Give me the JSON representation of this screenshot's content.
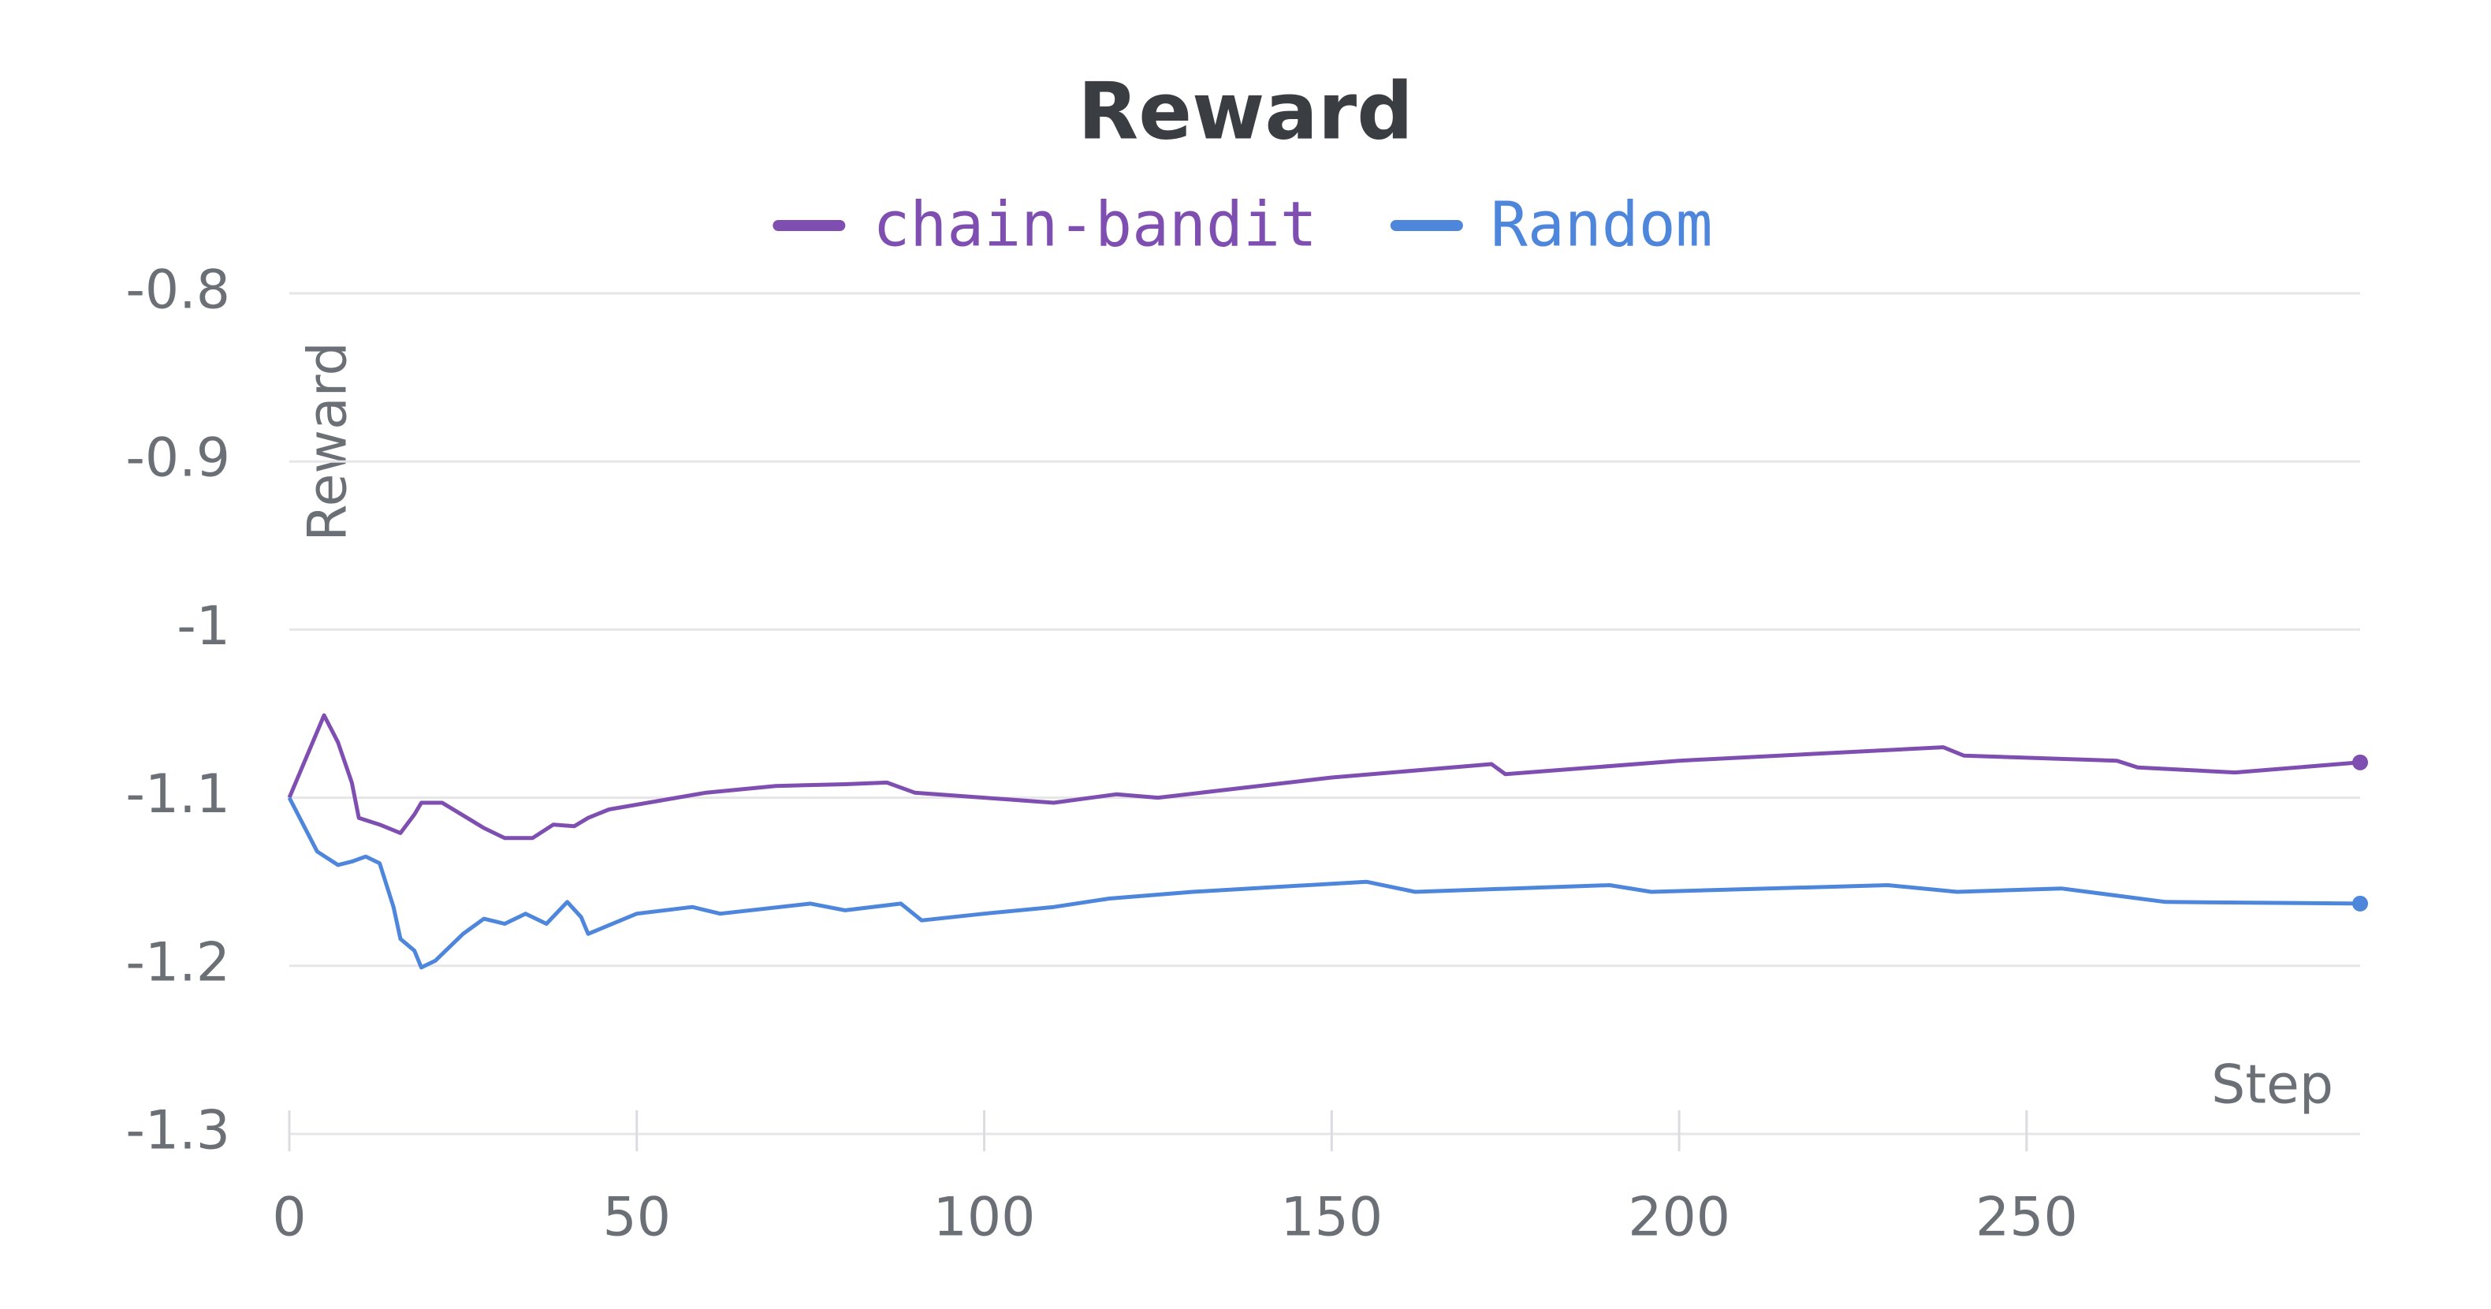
{
  "chart_data": {
    "type": "line",
    "title": "Reward",
    "x_label": "Step",
    "y_label": "Reward",
    "xlim": [
      0,
      298
    ],
    "xticks": [
      0,
      50,
      100,
      150,
      200,
      250
    ],
    "ylim": [
      -1.3,
      -0.8
    ],
    "yticks": [
      -0.8,
      -0.9,
      -1,
      -1.1,
      -1.2,
      -1.3
    ],
    "grid": true,
    "legend": "top",
    "series": [
      {
        "name": "chain-bandit",
        "color": "#7e4fb0",
        "x": [
          0,
          5,
          7,
          9,
          10,
          13,
          16,
          18,
          19,
          22,
          26,
          28,
          31,
          35,
          38,
          41,
          43,
          46,
          60,
          70,
          80,
          86,
          90,
          110,
          119,
          125,
          150,
          173,
          175,
          200,
          238,
          241,
          263,
          266,
          280,
          298
        ],
        "values": [
          -1.1,
          -1.051,
          -1.067,
          -1.091,
          -1.112,
          -1.116,
          -1.121,
          -1.11,
          -1.103,
          -1.103,
          -1.113,
          -1.118,
          -1.124,
          -1.124,
          -1.116,
          -1.117,
          -1.112,
          -1.107,
          -1.097,
          -1.093,
          -1.092,
          -1.091,
          -1.097,
          -1.103,
          -1.098,
          -1.1,
          -1.088,
          -1.08,
          -1.086,
          -1.078,
          -1.07,
          -1.075,
          -1.078,
          -1.082,
          -1.085,
          -1.079
        ]
      },
      {
        "name": "Random",
        "color": "#4e86dc",
        "x": [
          0,
          4,
          7,
          9,
          11,
          13,
          15,
          16,
          18,
          19,
          21,
          25,
          28,
          31,
          34,
          37,
          40,
          42,
          43,
          50,
          58,
          62,
          75,
          80,
          88,
          91,
          100,
          110,
          118,
          130,
          155,
          162,
          190,
          196,
          230,
          240,
          255,
          270,
          298
        ],
        "values": [
          -1.1,
          -1.132,
          -1.14,
          -1.138,
          -1.135,
          -1.139,
          -1.165,
          -1.184,
          -1.191,
          -1.201,
          -1.197,
          -1.181,
          -1.172,
          -1.175,
          -1.169,
          -1.175,
          -1.162,
          -1.171,
          -1.181,
          -1.169,
          -1.165,
          -1.169,
          -1.163,
          -1.167,
          -1.163,
          -1.173,
          -1.169,
          -1.165,
          -1.16,
          -1.156,
          -1.15,
          -1.156,
          -1.152,
          -1.156,
          -1.152,
          -1.156,
          -1.154,
          -1.162,
          -1.163
        ]
      }
    ]
  }
}
